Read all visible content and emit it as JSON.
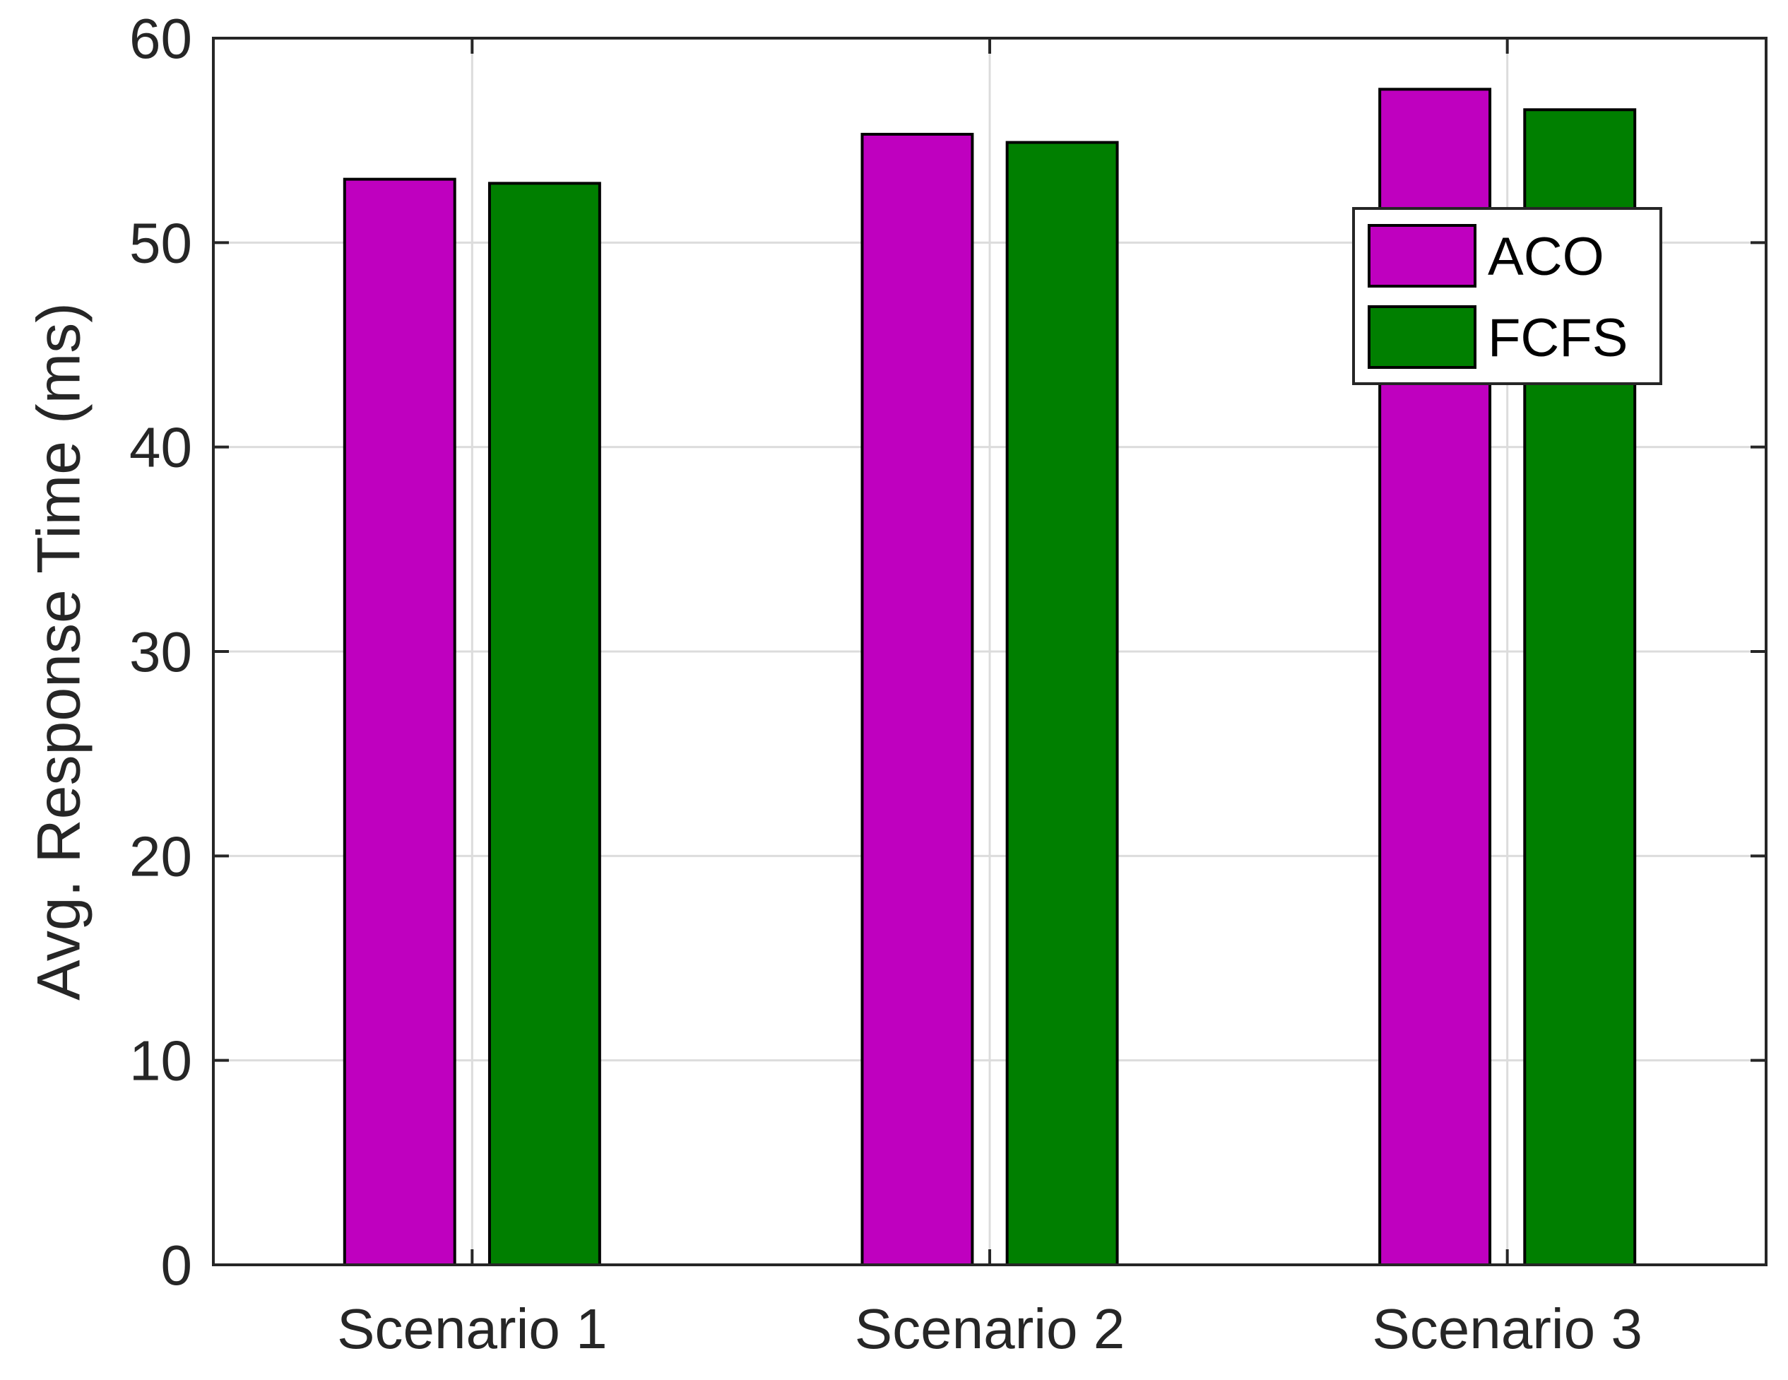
{
  "chart_data": {
    "type": "bar",
    "categories": [
      "Scenario 1",
      "Scenario 2",
      "Scenario 3"
    ],
    "series": [
      {
        "name": "ACO",
        "values": [
          53.1,
          55.3,
          57.5
        ],
        "color": "#BF00BF"
      },
      {
        "name": "FCFS",
        "values": [
          52.9,
          54.9,
          56.5
        ],
        "color": "#007F00"
      }
    ],
    "ylabel": "Avg. Response Time (ms)",
    "xlabel": "",
    "ylim": [
      0,
      60
    ],
    "yticks": [
      "0",
      "10",
      "20",
      "30",
      "40",
      "50",
      "60"
    ],
    "grid": true,
    "legend_position": "top-right"
  }
}
